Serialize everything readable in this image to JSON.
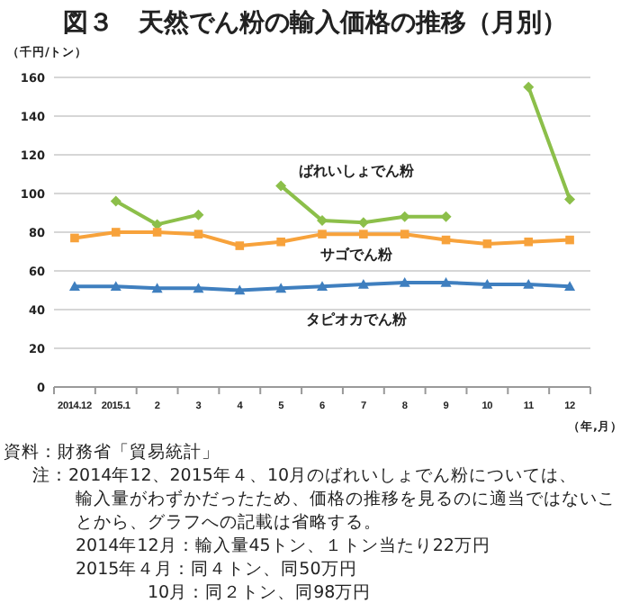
{
  "chart_data": {
    "type": "line",
    "title": "図３　天然でん粉の輸入価格の推移（月別）",
    "ylabel": "（千円/トン）",
    "xlabel": "（年,月）",
    "categories": [
      "2014.12",
      "2015.1",
      "2",
      "3",
      "4",
      "5",
      "6",
      "7",
      "8",
      "9",
      "10",
      "11",
      "12"
    ],
    "series": [
      {
        "name": "ばれいしょでん粉",
        "color": "#8cbf4a",
        "marker": "diamond",
        "values": [
          null,
          96,
          84,
          89,
          null,
          104,
          86,
          85,
          88,
          88,
          null,
          155,
          97
        ]
      },
      {
        "name": "サゴでん粉",
        "color": "#f7a23b",
        "marker": "square",
        "values": [
          77,
          80,
          80,
          79,
          73,
          75,
          79,
          79,
          79,
          76,
          74,
          75,
          76
        ]
      },
      {
        "name": "タピオカでん粉",
        "color": "#3f7fbf",
        "marker": "triangle",
        "values": [
          52,
          52,
          51,
          51,
          50,
          51,
          52,
          53,
          54,
          54,
          53,
          53,
          52
        ]
      }
    ],
    "ylim": [
      0,
      160
    ],
    "yticks": [
      0,
      20,
      40,
      60,
      80,
      100,
      120,
      140,
      160
    ],
    "grid": "y",
    "annotations": [
      "資料：財務省「貿易統計」",
      "注：2014年12、2015年４、10月のばれいしょでん粉については、輸入量がわずかだったため、価格の推移を見るのに適当ではないことから、グラフへの記載は省略する。",
      "2014年12月：輸入量45トン、１トン当たり22万円",
      "2015年４月：同４トン、同50万円",
      "10月：同２トン、同98万円"
    ]
  }
}
